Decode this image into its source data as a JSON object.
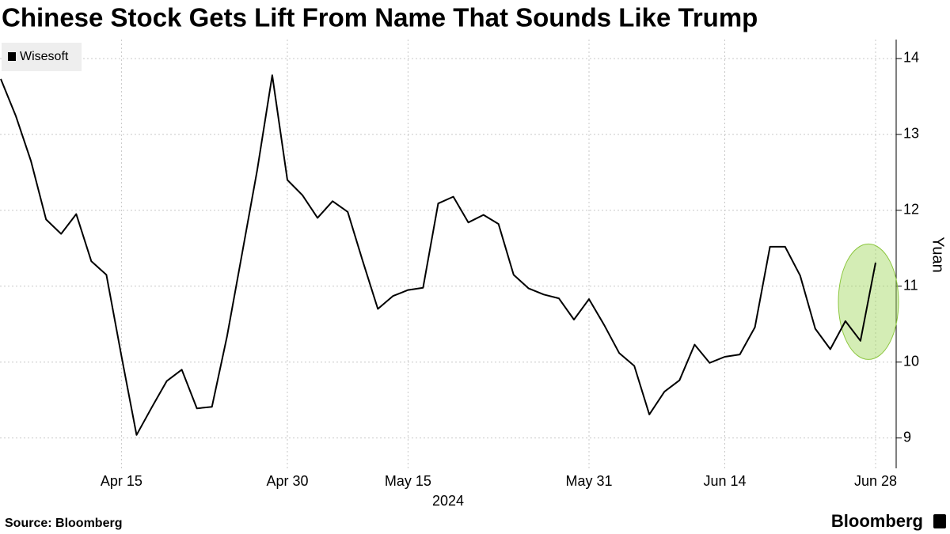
{
  "chart_data": {
    "type": "line",
    "title": "Chinese Stock Gets Lift From Name That Sounds Like Trump",
    "y_label": "Yuan",
    "x_year_label": "2024",
    "source": "Source: Bloomberg",
    "brand": "Bloomberg",
    "categories": [
      null,
      null,
      null,
      null,
      null,
      null,
      null,
      null,
      "Apr 15",
      null,
      null,
      null,
      null,
      null,
      null,
      null,
      null,
      null,
      null,
      "Apr 30",
      null,
      null,
      null,
      null,
      null,
      null,
      null,
      "May 15",
      null,
      null,
      null,
      null,
      null,
      null,
      null,
      null,
      null,
      null,
      null,
      "May 31",
      null,
      null,
      null,
      null,
      null,
      null,
      null,
      null,
      "Jun 14",
      null,
      null,
      null,
      null,
      null,
      null,
      null,
      null,
      null,
      "Jun 28"
    ],
    "series": [
      {
        "name": "Wisesoft",
        "color": "#000000",
        "values": [
          13.73,
          13.24,
          12.65,
          11.88,
          11.69,
          11.95,
          11.33,
          11.15,
          10.08,
          9.04,
          9.4,
          9.75,
          9.9,
          9.39,
          9.41,
          10.34,
          11.43,
          12.53,
          13.78,
          12.4,
          12.2,
          11.9,
          12.12,
          11.98,
          11.33,
          10.7,
          10.87,
          10.95,
          10.98,
          12.09,
          12.18,
          11.84,
          11.94,
          11.82,
          11.15,
          10.97,
          10.89,
          10.84,
          10.56,
          10.83,
          10.49,
          10.12,
          9.95,
          9.31,
          9.61,
          9.76,
          10.23,
          9.99,
          10.07,
          10.1,
          10.46,
          11.52,
          11.52,
          11.14,
          10.44,
          10.17,
          10.54,
          10.28,
          11.31
        ]
      }
    ],
    "ylim": [
      8.6,
      14.25
    ],
    "yticks": [
      9,
      10,
      11,
      12,
      13,
      14
    ],
    "grid": true,
    "legend": "top-left"
  }
}
